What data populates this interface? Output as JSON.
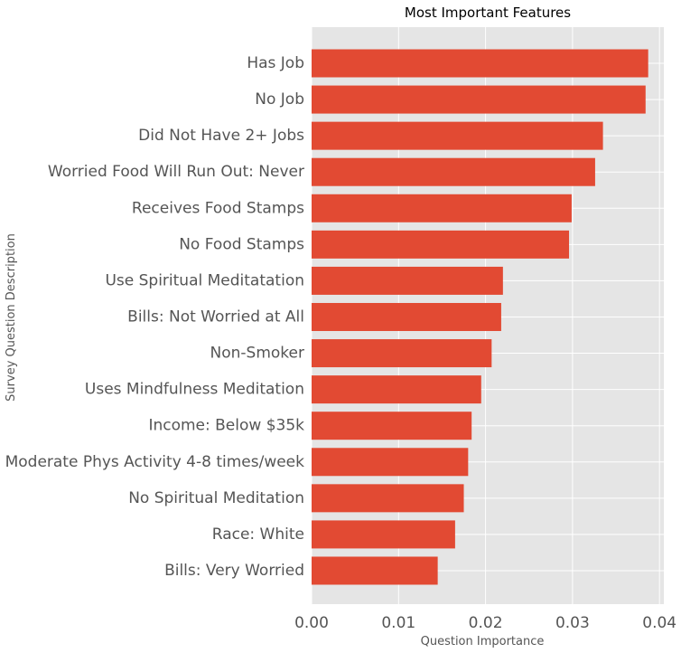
{
  "chart_data": {
    "type": "bar",
    "orientation": "horizontal",
    "title": "Most Important Features",
    "xlabel": "Question Importance",
    "ylabel": "Survey Question Description",
    "xlim": [
      0,
      0.0405
    ],
    "x_ticks": [
      "0.00",
      "0.01",
      "0.02",
      "0.03",
      "0.04"
    ],
    "x_tick_values": [
      0,
      0.01,
      0.02,
      0.03,
      0.04
    ],
    "grid": true,
    "bar_color": "#E24A33",
    "background_color": "#E5E5E5",
    "categories": [
      "Has Job",
      "No Job",
      "Did Not Have 2+ Jobs",
      "Worried Food Will Run Out: Never",
      "Receives Food Stamps",
      "No Food Stamps",
      "Use Spiritual Meditatation",
      "Bills: Not Worried at All",
      "Non-Smoker",
      "Uses Mindfulness Meditation",
      "Income: Below $35k",
      "Moderate Phys Activity 4-8 times/week",
      "No Spiritual Meditation",
      "Race: White",
      "Bills: Very Worried"
    ],
    "values": [
      0.0387,
      0.0384,
      0.0335,
      0.0326,
      0.0299,
      0.0296,
      0.022,
      0.0218,
      0.0207,
      0.0195,
      0.0184,
      0.018,
      0.0175,
      0.0165,
      0.0145
    ]
  }
}
